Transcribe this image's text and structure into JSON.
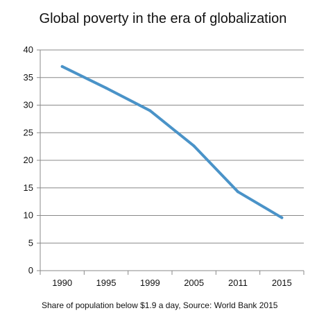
{
  "chart_data": {
    "type": "line",
    "title": "Global poverty in the era of globalization",
    "note": "Share of population below $1.9 a day, Source: World Bank 2015",
    "xlabel": "",
    "ylabel": "",
    "categories": [
      "1990",
      "1995",
      "1999",
      "2005",
      "2011",
      "2015"
    ],
    "series": [
      {
        "values": [
          37.0,
          33.1,
          29.0,
          22.6,
          14.3,
          9.6
        ]
      }
    ],
    "ylim": [
      0,
      40
    ],
    "yticks": [
      0,
      5,
      10,
      15,
      20,
      25,
      30,
      35,
      40
    ],
    "grid": "horizontal",
    "legend": "none",
    "line_color": "#4a93c8",
    "grid_color": "#888888"
  }
}
